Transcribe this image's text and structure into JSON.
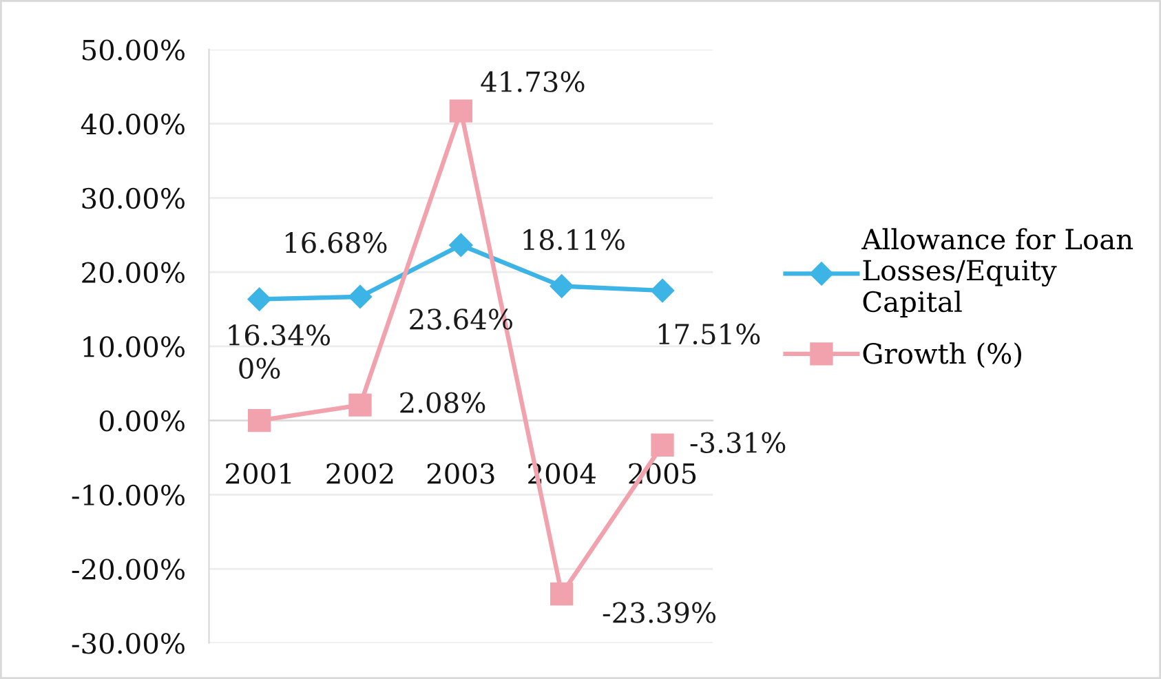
{
  "chart_data": {
    "type": "line",
    "categories": [
      "2001",
      "2002",
      "2003",
      "2004",
      "2005"
    ],
    "series": [
      {
        "name": "Allowance for Loan Losses/Equity Capital",
        "color": "#3cb4e5",
        "marker": "diamond",
        "values": [
          16.34,
          16.68,
          23.64,
          18.11,
          17.51
        ],
        "value_labels": [
          "16.34%",
          "16.68%",
          "23.64%",
          "18.11%",
          "17.51%"
        ]
      },
      {
        "name": "Growth (%)",
        "color": "#f2a2ac",
        "marker": "square",
        "values": [
          0,
          2.08,
          41.73,
          -23.39,
          -3.31
        ],
        "value_labels": [
          "0%",
          "2.08%",
          "41.73%",
          "-23.39%",
          "-3.31%"
        ]
      }
    ],
    "ylim": [
      -30,
      50
    ],
    "yticks": [
      {
        "value": -30,
        "label": "-30.00%"
      },
      {
        "value": -20,
        "label": "-20.00%"
      },
      {
        "value": -10,
        "label": "-10.00%"
      },
      {
        "value": 0,
        "label": "0.00%"
      },
      {
        "value": 10,
        "label": "10.00%"
      },
      {
        "value": 20,
        "label": "20.00%"
      },
      {
        "value": 30,
        "label": "30.00%"
      },
      {
        "value": 40,
        "label": "40.00%"
      },
      {
        "value": 50,
        "label": "50.00%"
      }
    ],
    "grid": "y",
    "legend": "right",
    "line_style": "solid"
  }
}
